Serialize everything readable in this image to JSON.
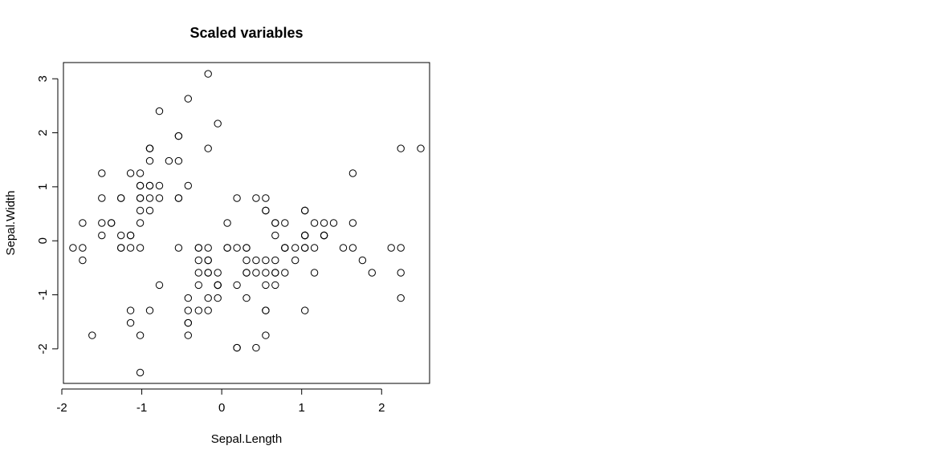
{
  "chart_data": {
    "type": "scatter",
    "title": "Scaled variables",
    "xlabel": "Sepal.Length",
    "ylabel": "Sepal.Width",
    "xlim": [
      -1.98,
      2.6
    ],
    "ylim": [
      -2.64,
      3.3
    ],
    "x_ticks": [
      -2,
      -1,
      0,
      1,
      2
    ],
    "x_tick_labels": [
      "-2",
      "-1",
      "0",
      "1",
      "2"
    ],
    "y_ticks": [
      -2,
      -1,
      0,
      1,
      2,
      3
    ],
    "y_tick_labels": [
      "-2",
      "-1",
      "0",
      "1",
      "2",
      "3"
    ],
    "grid": false,
    "marker": "open-circle",
    "colors": {
      "ink": "#000000",
      "background": "#ffffff"
    },
    "points": [
      [
        -0.9,
        1.02
      ],
      [
        -1.14,
        -0.13
      ],
      [
        -1.38,
        0.33
      ],
      [
        -1.5,
        0.1
      ],
      [
        -1.02,
        1.25
      ],
      [
        -0.54,
        1.94
      ],
      [
        -1.5,
        0.79
      ],
      [
        -1.02,
        0.79
      ],
      [
        -1.74,
        -0.36
      ],
      [
        -1.14,
        0.1
      ],
      [
        -0.54,
        1.48
      ],
      [
        -1.26,
        0.79
      ],
      [
        -1.26,
        -0.13
      ],
      [
        -1.86,
        -0.13
      ],
      [
        -0.05,
        2.17
      ],
      [
        -0.17,
        3.09
      ],
      [
        -0.54,
        1.94
      ],
      [
        -0.9,
        1.02
      ],
      [
        -0.17,
        1.71
      ],
      [
        -0.9,
        1.71
      ],
      [
        -0.54,
        0.79
      ],
      [
        -0.9,
        1.48
      ],
      [
        -1.5,
        1.25
      ],
      [
        -0.9,
        0.56
      ],
      [
        -1.26,
        0.79
      ],
      [
        -1.02,
        -0.13
      ],
      [
        -1.02,
        0.79
      ],
      [
        -0.78,
        1.02
      ],
      [
        -0.78,
        0.79
      ],
      [
        -1.38,
        0.33
      ],
      [
        -1.26,
        0.1
      ],
      [
        -0.54,
        0.79
      ],
      [
        -0.78,
        2.4
      ],
      [
        -0.42,
        2.63
      ],
      [
        -1.14,
        0.1
      ],
      [
        -1.02,
        0.33
      ],
      [
        -0.42,
        1.02
      ],
      [
        -1.14,
        1.25
      ],
      [
        -1.74,
        -0.13
      ],
      [
        -0.9,
        0.79
      ],
      [
        -1.02,
        1.02
      ],
      [
        -1.62,
        -1.75
      ],
      [
        -1.74,
        0.33
      ],
      [
        -1.02,
        1.02
      ],
      [
        -0.9,
        1.71
      ],
      [
        -1.26,
        -0.13
      ],
      [
        -0.9,
        1.71
      ],
      [
        -1.5,
        0.33
      ],
      [
        -0.66,
        1.48
      ],
      [
        -1.02,
        0.56
      ],
      [
        1.4,
        0.33
      ],
      [
        0.67,
        0.33
      ],
      [
        1.28,
        0.1
      ],
      [
        -0.42,
        -1.75
      ],
      [
        0.79,
        -0.59
      ],
      [
        -0.17,
        -0.59
      ],
      [
        0.55,
        0.56
      ],
      [
        -1.14,
        -1.52
      ],
      [
        0.92,
        -0.36
      ],
      [
        -0.78,
        -0.82
      ],
      [
        -1.02,
        -2.44
      ],
      [
        0.07,
        -0.13
      ],
      [
        0.19,
        -1.98
      ],
      [
        0.31,
        -0.36
      ],
      [
        -0.29,
        -0.36
      ],
      [
        1.04,
        0.1
      ],
      [
        -0.29,
        -0.13
      ],
      [
        -0.05,
        -0.82
      ],
      [
        0.43,
        -1.98
      ],
      [
        -0.29,
        -1.29
      ],
      [
        0.07,
        0.33
      ],
      [
        0.31,
        -0.59
      ],
      [
        0.55,
        -1.29
      ],
      [
        0.31,
        -0.59
      ],
      [
        0.67,
        -0.36
      ],
      [
        0.92,
        -0.13
      ],
      [
        1.16,
        -0.59
      ],
      [
        1.04,
        -0.13
      ],
      [
        -0.17,
        -0.36
      ],
      [
        -0.17,
        -1.06
      ],
      [
        -0.42,
        -1.52
      ],
      [
        -0.42,
        -1.52
      ],
      [
        -0.05,
        -0.82
      ],
      [
        0.19,
        -0.82
      ],
      [
        -0.54,
        -0.13
      ],
      [
        0.19,
        0.79
      ],
      [
        1.04,
        0.1
      ],
      [
        0.55,
        -1.75
      ],
      [
        -0.29,
        -0.13
      ],
      [
        -0.42,
        -1.29
      ],
      [
        -0.42,
        -1.06
      ],
      [
        0.31,
        -0.13
      ],
      [
        -0.05,
        -1.06
      ],
      [
        -1.02,
        -1.75
      ],
      [
        -0.29,
        -0.82
      ],
      [
        -0.17,
        -0.13
      ],
      [
        -0.17,
        -0.36
      ],
      [
        0.43,
        -0.36
      ],
      [
        -0.9,
        -1.29
      ],
      [
        -0.17,
        -0.59
      ],
      [
        0.55,
        0.56
      ],
      [
        -0.05,
        -0.82
      ],
      [
        1.52,
        -0.13
      ],
      [
        0.55,
        -0.36
      ],
      [
        0.79,
        -0.13
      ],
      [
        2.12,
        -0.13
      ],
      [
        -1.14,
        -1.29
      ],
      [
        1.76,
        -0.36
      ],
      [
        1.04,
        -1.29
      ],
      [
        1.64,
        1.25
      ],
      [
        0.79,
        0.33
      ],
      [
        0.67,
        -0.82
      ],
      [
        1.16,
        -0.13
      ],
      [
        -0.17,
        -1.29
      ],
      [
        -0.05,
        -0.59
      ],
      [
        0.67,
        0.33
      ],
      [
        0.79,
        -0.13
      ],
      [
        2.24,
        1.71
      ],
      [
        2.24,
        -1.06
      ],
      [
        0.19,
        -1.98
      ],
      [
        1.28,
        0.33
      ],
      [
        -0.29,
        -0.59
      ],
      [
        2.24,
        -0.59
      ],
      [
        0.55,
        -0.82
      ],
      [
        1.04,
        0.56
      ],
      [
        1.64,
        0.33
      ],
      [
        0.43,
        -0.59
      ],
      [
        0.31,
        -0.13
      ],
      [
        0.67,
        -0.59
      ],
      [
        1.64,
        -0.13
      ],
      [
        1.88,
        -0.59
      ],
      [
        2.49,
        1.71
      ],
      [
        0.67,
        -0.59
      ],
      [
        0.55,
        -0.59
      ],
      [
        0.31,
        -1.06
      ],
      [
        2.24,
        -0.13
      ],
      [
        0.55,
        0.79
      ],
      [
        0.67,
        0.1
      ],
      [
        0.19,
        -0.13
      ],
      [
        1.28,
        0.1
      ],
      [
        1.04,
        0.1
      ],
      [
        1.28,
        0.1
      ],
      [
        -0.05,
        -0.82
      ],
      [
        1.16,
        0.33
      ],
      [
        1.04,
        0.56
      ],
      [
        1.04,
        -0.13
      ],
      [
        0.55,
        -1.29
      ],
      [
        0.79,
        -0.13
      ],
      [
        0.43,
        0.79
      ],
      [
        0.07,
        -0.13
      ]
    ]
  }
}
